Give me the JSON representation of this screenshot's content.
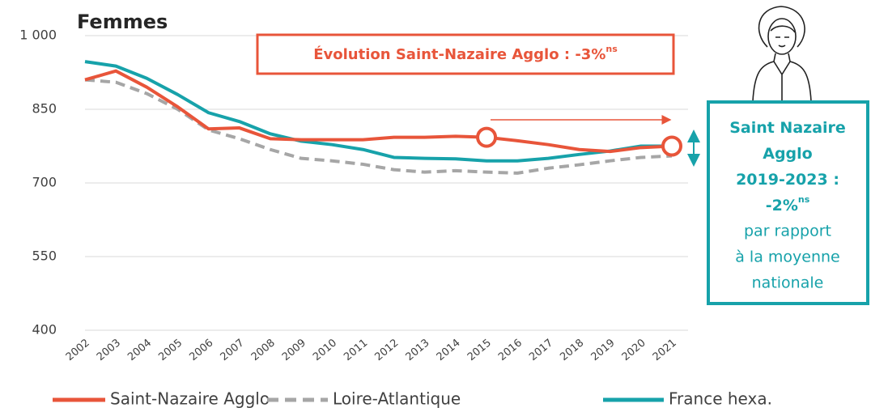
{
  "chart_data": {
    "type": "line",
    "title": "Femmes",
    "categories": [
      "2002",
      "2003",
      "2004",
      "2005",
      "2006",
      "2007",
      "2008",
      "2009",
      "2010",
      "2011",
      "2012",
      "2013",
      "2014",
      "2015",
      "2016",
      "2017",
      "2018",
      "2019",
      "2020",
      "2021"
    ],
    "ylim": [
      400,
      1000
    ],
    "yticks": [
      400,
      550,
      700,
      850,
      {
        "value": 1000,
        "label": "1 000"
      }
    ],
    "grid": true,
    "series": [
      {
        "name": "Saint-Nazaire Agglo",
        "color": "#e8553a",
        "dashed": false,
        "values": [
          910,
          928,
          895,
          855,
          810,
          812,
          790,
          788,
          788,
          788,
          793,
          793,
          795,
          793,
          786,
          778,
          768,
          764,
          772,
          775
        ]
      },
      {
        "name": "Loire-Atlantique",
        "color": "#a6a6a6",
        "dashed": true,
        "values": [
          910,
          905,
          882,
          850,
          808,
          790,
          768,
          750,
          745,
          738,
          727,
          722,
          725,
          722,
          720,
          730,
          737,
          745,
          752,
          755
        ]
      },
      {
        "name": "France hexa.",
        "color": "#17a2aa",
        "dashed": false,
        "values": [
          947,
          938,
          913,
          880,
          843,
          825,
          800,
          785,
          778,
          768,
          752,
          750,
          749,
          745,
          745,
          750,
          758,
          765,
          775,
          775
        ]
      }
    ],
    "highlight": {
      "series": 0,
      "categories": [
        "2015",
        "2021"
      ]
    },
    "annotations": {
      "headline": {
        "text": "Évolution Saint-Nazaire Agglo : -3%",
        "superscript": "ns"
      },
      "callout": {
        "lines": [
          "Saint Nazaire",
          "Agglo",
          "2019-2023 :",
          "-2%"
        ],
        "superscript": "ns",
        "note": [
          "par rapport",
          "à la moyenne",
          "nationale"
        ]
      }
    }
  }
}
